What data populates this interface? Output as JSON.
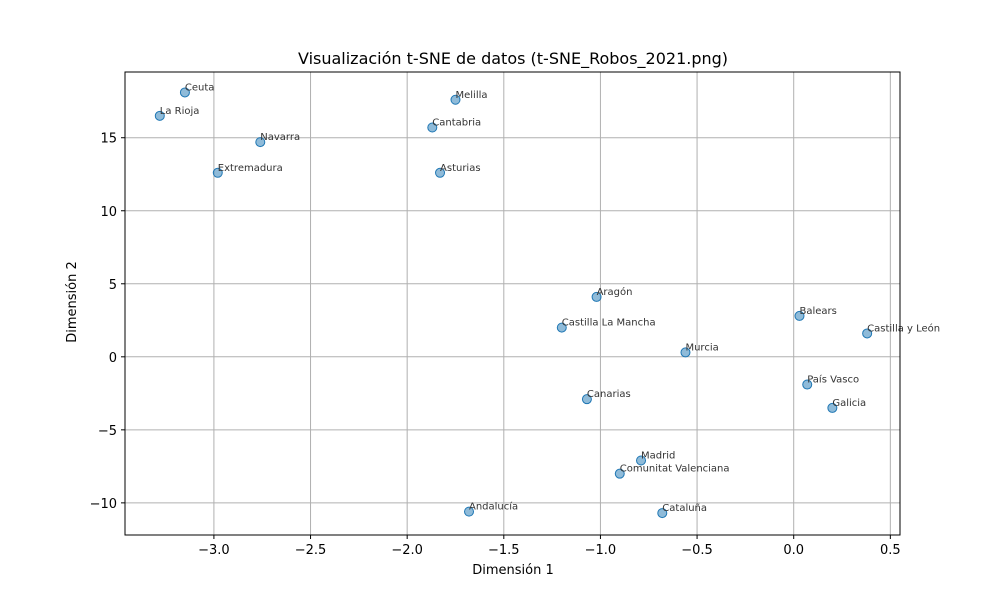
{
  "chart_data": {
    "type": "scatter",
    "title": "Visualización t-SNE de datos (t-SNE_Robos_2021.png)",
    "xlabel": "Dimensión 1",
    "ylabel": "Dimensión 2",
    "xlim": [
      -3.46,
      0.55
    ],
    "ylim": [
      -12.2,
      19.5
    ],
    "xticks": [
      -3.0,
      -2.5,
      -2.0,
      -1.5,
      -1.0,
      -0.5,
      0.0,
      0.5
    ],
    "xtick_labels": [
      "−3.0",
      "−2.5",
      "−2.0",
      "−1.5",
      "−1.0",
      "−0.5",
      "0.0",
      "0.5"
    ],
    "yticks": [
      -10,
      -5,
      0,
      5,
      10,
      15
    ],
    "ytick_labels": [
      "−10",
      "−5",
      "0",
      "5",
      "10",
      "15"
    ],
    "grid": true,
    "point_color": "#1f77b4",
    "points": [
      {
        "label": "Ceuta",
        "x": -3.15,
        "y": 18.1
      },
      {
        "label": "La Rioja",
        "x": -3.28,
        "y": 16.5
      },
      {
        "label": "Navarra",
        "x": -2.76,
        "y": 14.7
      },
      {
        "label": "Extremadura",
        "x": -2.98,
        "y": 12.6
      },
      {
        "label": "Melilla",
        "x": -1.75,
        "y": 17.6
      },
      {
        "label": "Cantabria",
        "x": -1.87,
        "y": 15.7
      },
      {
        "label": "Asturias",
        "x": -1.83,
        "y": 12.6
      },
      {
        "label": "Aragón",
        "x": -1.02,
        "y": 4.1
      },
      {
        "label": "Castilla La Mancha",
        "x": -1.2,
        "y": 2.0
      },
      {
        "label": "Balears",
        "x": 0.03,
        "y": 2.8
      },
      {
        "label": "Castilla y León",
        "x": 0.38,
        "y": 1.6
      },
      {
        "label": "Murcia",
        "x": -0.56,
        "y": 0.3
      },
      {
        "label": "País Vasco",
        "x": 0.07,
        "y": -1.9
      },
      {
        "label": "Canarias",
        "x": -1.07,
        "y": -2.9
      },
      {
        "label": "Galicia",
        "x": 0.2,
        "y": -3.5
      },
      {
        "label": "Madrid",
        "x": -0.79,
        "y": -7.1
      },
      {
        "label": "Comunitat Valenciana",
        "x": -0.9,
        "y": -8.0
      },
      {
        "label": "Andalucía",
        "x": -1.68,
        "y": -10.6
      },
      {
        "label": "Cataluña",
        "x": -0.68,
        "y": -10.7
      }
    ]
  }
}
